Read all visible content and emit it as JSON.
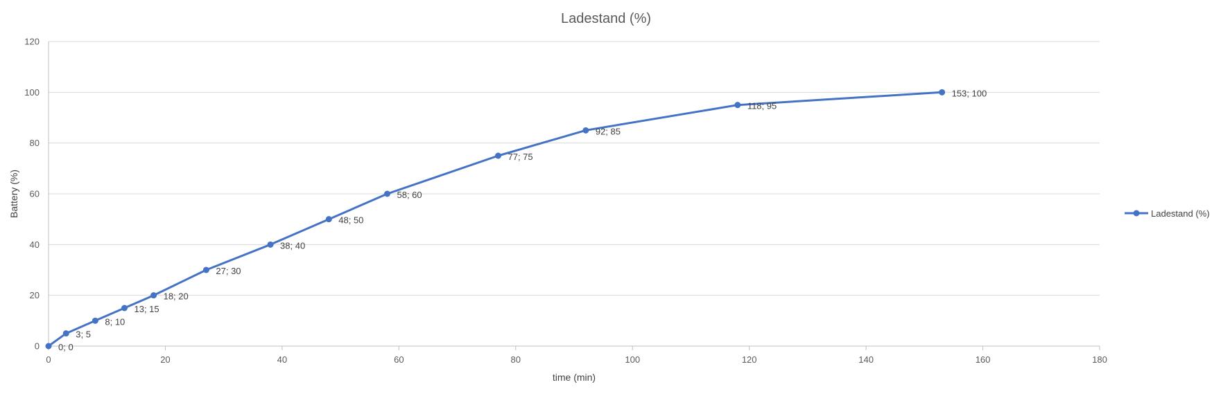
{
  "chart_data": {
    "type": "line",
    "title": "Ladestand (%)",
    "xlabel": "time (min)",
    "ylabel": "Battery (%)",
    "xlim": [
      0,
      180
    ],
    "ylim": [
      0,
      120
    ],
    "x_ticks": [
      "0",
      "20",
      "40",
      "60",
      "80",
      "100",
      "120",
      "140",
      "160",
      "180"
    ],
    "y_ticks": [
      "0",
      "20",
      "40",
      "60",
      "80",
      "100",
      "120"
    ],
    "grid": "horizontal",
    "legend_position": "right",
    "series": [
      {
        "name": "Ladestand (%)",
        "color": "#4472C4",
        "x": [
          0,
          3,
          8,
          13,
          18,
          27,
          38,
          48,
          58,
          77,
          92,
          118,
          153
        ],
        "y": [
          0,
          5,
          10,
          15,
          20,
          30,
          40,
          50,
          60,
          75,
          85,
          95,
          100
        ],
        "data_labels": [
          "0; 0",
          "3; 5",
          "8; 10",
          "13; 15",
          "18; 20",
          "27; 30",
          "38; 40",
          "48; 50",
          "58; 60",
          "77; 75",
          "92; 85",
          "118; 95",
          "153; 100"
        ]
      }
    ]
  }
}
